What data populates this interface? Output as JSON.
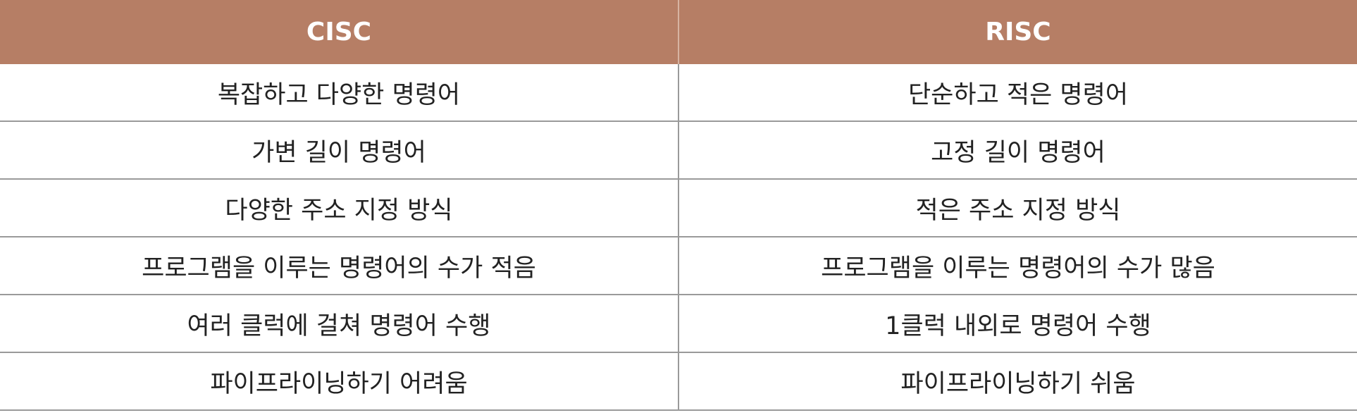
{
  "header": {
    "cisc": "CISC",
    "risc": "RISC"
  },
  "rows": [
    {
      "cisc": "복잡하고 다양한 명령어",
      "risc": "단순하고 적은 명령어"
    },
    {
      "cisc": "가변 길이 명령어",
      "risc": "고정 길이 명령어"
    },
    {
      "cisc": "다양한 주소 지정 방식",
      "risc": "적은 주소 지정 방식"
    },
    {
      "cisc": "프로그램을 이루는 명령어의 수가 적음",
      "risc": "프로그램을 이루는 명령어의 수가 많음"
    },
    {
      "cisc": "여러 클럭에 걸쳐 명령어 수행",
      "risc": "1클럭 내외로 명령어 수행"
    },
    {
      "cisc": "파이프라이닝하기 어려움",
      "risc": "파이프라이닝하기 쉬움"
    }
  ],
  "colors": {
    "header_bg": "#b67e65",
    "header_text": "#ffffff",
    "grid_line": "#9a9a9a"
  }
}
